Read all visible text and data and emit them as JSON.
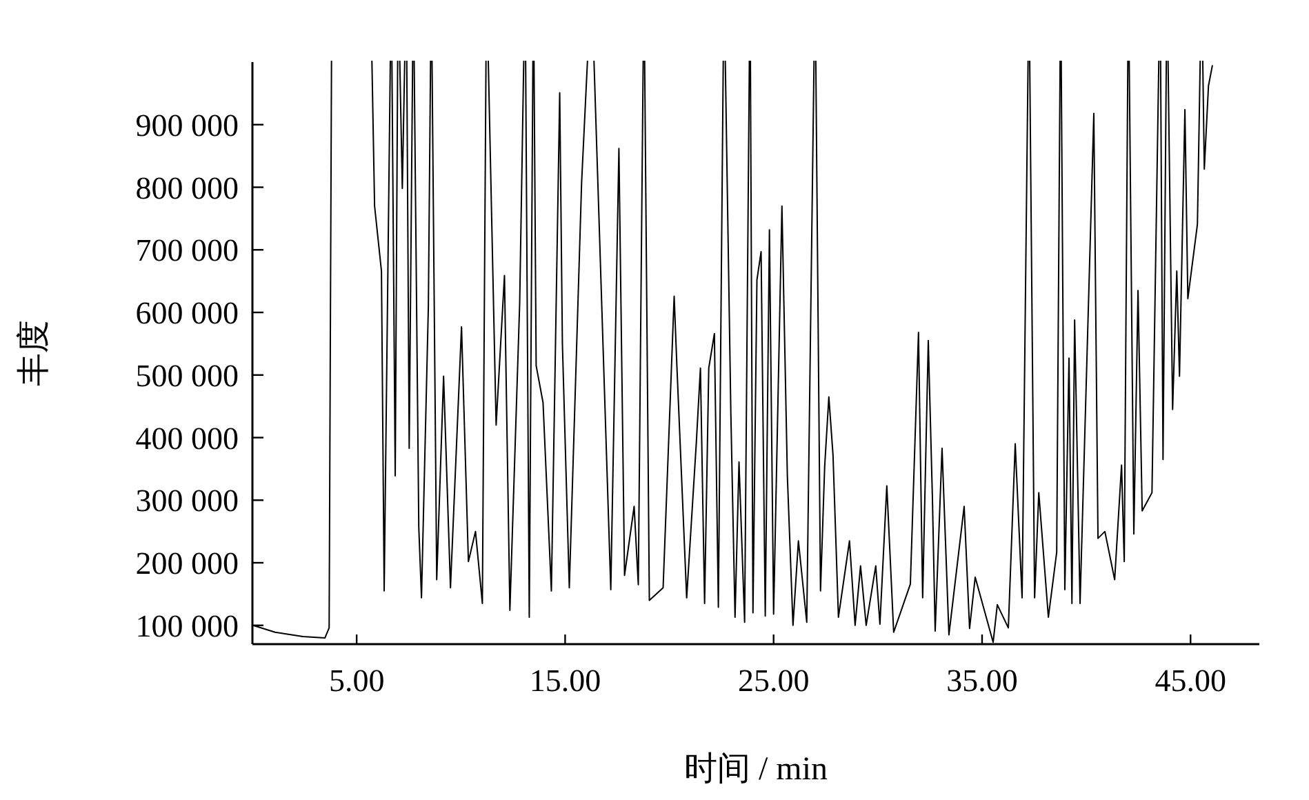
{
  "chart_data": {
    "type": "line",
    "xlabel": "时间 / min",
    "ylabel": "丰度",
    "xlim": [
      0,
      48.3
    ],
    "ylim": [
      70000,
      1000000
    ],
    "xticks": [
      {
        "value": 5,
        "label": "5.00"
      },
      {
        "value": 15,
        "label": "15.00"
      },
      {
        "value": 25,
        "label": "25.00"
      },
      {
        "value": 35,
        "label": "35.00"
      },
      {
        "value": 45,
        "label": "45.00"
      }
    ],
    "yticks": [
      {
        "value": 100000,
        "label": "100 000"
      },
      {
        "value": 200000,
        "label": "200 000"
      },
      {
        "value": 300000,
        "label": "300 000"
      },
      {
        "value": 400000,
        "label": "400 000"
      },
      {
        "value": 500000,
        "label": "500 000"
      },
      {
        "value": 600000,
        "label": "600 000"
      },
      {
        "value": 700000,
        "label": "700 000"
      },
      {
        "value": 800000,
        "label": "800 000"
      },
      {
        "value": 900000,
        "label": "900 000"
      }
    ],
    "x": [
      0.03,
      1.09,
      2.42,
      3.48,
      3.68,
      3.81,
      4.74,
      5.66,
      5.86,
      6.19,
      6.32,
      6.66,
      6.85,
      6.99,
      7.19,
      7.38,
      7.52,
      7.72,
      7.98,
      8.11,
      8.44,
      8.58,
      8.84,
      9.17,
      9.5,
      10.03,
      10.36,
      10.7,
      11.03,
      11.23,
      11.69,
      12.09,
      12.35,
      12.82,
      13.08,
      13.28,
      13.48,
      13.61,
      13.94,
      14.34,
      14.74,
      14.87,
      15.2,
      15.79,
      16.26,
      17.19,
      17.58,
      17.85,
      18.31,
      18.51,
      18.78,
      19.04,
      19.7,
      20.23,
      20.36,
      20.83,
      21.29,
      21.49,
      21.69,
      21.89,
      22.16,
      22.35,
      22.62,
      22.95,
      23.15,
      23.34,
      23.61,
      23.87,
      24.01,
      24.2,
      24.4,
      24.6,
      24.8,
      25.0,
      25.4,
      25.66,
      25.93,
      26.19,
      26.59,
      26.99,
      27.25,
      27.45,
      27.65,
      27.85,
      28.11,
      28.64,
      28.91,
      29.17,
      29.44,
      29.9,
      30.1,
      30.43,
      30.76,
      31.56,
      31.95,
      32.15,
      32.42,
      32.62,
      32.75,
      33.08,
      33.41,
      34.14,
      34.4,
      34.67,
      35.53,
      35.73,
      36.26,
      36.59,
      36.92,
      37.25,
      37.52,
      37.72,
      38.18,
      38.58,
      38.77,
      38.97,
      39.17,
      39.31,
      39.44,
      39.7,
      40.36,
      40.56,
      40.89,
      41.36,
      41.69,
      41.82,
      42.02,
      42.28,
      42.48,
      42.68,
      43.15,
      43.54,
      43.68,
      43.87,
      44.14,
      44.34,
      44.47,
      44.73,
      44.87,
      45.33,
      45.53,
      45.66,
      45.86,
      46.05
    ],
    "series": [
      {
        "color": "#000000",
        "values": [
          100000,
          89000,
          82000,
          80000,
          96000,
          null,
          null,
          null,
          770000,
          666000,
          155000,
          null,
          339000,
          null,
          798000,
          null,
          383000,
          null,
          257000,
          144000,
          610000,
          null,
          173000,
          498000,
          160000,
          577000,
          202000,
          250000,
          135000,
          null,
          420000,
          659000,
          124000,
          615000,
          null,
          113000,
          null,
          515000,
          456000,
          155000,
          951000,
          549000,
          160000,
          807000,
          null,
          157000,
          862000,
          180000,
          290000,
          165000,
          null,
          140000,
          160000,
          626000,
          515000,
          144000,
          390000,
          511000,
          135000,
          511000,
          566000,
          129000,
          null,
          438000,
          113000,
          361000,
          105000,
          null,
          120000,
          652000,
          697000,
          115000,
          732000,
          118000,
          770000,
          339000,
          100000,
          235000,
          105000,
          null,
          155000,
          354000,
          465000,
          372000,
          113000,
          235000,
          100000,
          195000,
          100000,
          195000,
          102000,
          323000,
          89000,
          166000,
          568000,
          144000,
          555000,
          301000,
          91000,
          383000,
          85000,
          290000,
          95000,
          177000,
          73000,
          133000,
          96000,
          390000,
          144000,
          null,
          144000,
          312000,
          113000,
          217000,
          null,
          157000,
          527000,
          135000,
          588000,
          135000,
          918000,
          239000,
          250000,
          173000,
          356000,
          202000,
          null,
          246000,
          635000,
          283000,
          312000,
          null,
          365000,
          null,
          445000,
          666000,
          498000,
          924000,
          622000,
          741000,
          null,
          829000,
          962000,
          995000
        ]
      }
    ]
  }
}
